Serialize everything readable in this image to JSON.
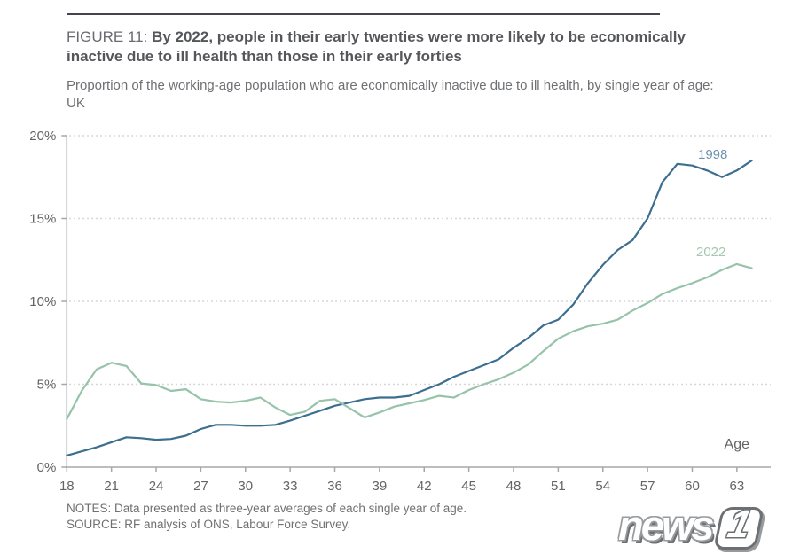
{
  "header": {
    "figure_label": "FIGURE 11:",
    "title": "By 2022, people in their early twenties were more likely to be economically inactive due to ill health than those in their early forties",
    "subtitle": "Proportion of the working-age population who are economically inactive due to ill health, by single year of age: UK"
  },
  "chart_data": {
    "type": "line",
    "title": "By 2022, people in their early twenties were more likely to be economically inactive due to ill health than those in their early forties",
    "subtitle": "Proportion of the working-age population who are economically inactive due to ill health, by single year of age: UK",
    "xlabel": "Age",
    "ylabel": "",
    "ylim": [
      0,
      20
    ],
    "grid": "horizontal-dotted",
    "legend": "inline-labels-near-line-ends",
    "x": [
      18,
      19,
      20,
      21,
      22,
      23,
      24,
      25,
      26,
      27,
      28,
      29,
      30,
      31,
      32,
      33,
      34,
      35,
      36,
      37,
      38,
      39,
      40,
      41,
      42,
      43,
      44,
      45,
      46,
      47,
      48,
      49,
      50,
      51,
      52,
      53,
      54,
      55,
      56,
      57,
      58,
      59,
      60,
      61,
      62,
      63,
      64
    ],
    "x_ticks": [
      18,
      21,
      24,
      27,
      30,
      33,
      36,
      39,
      42,
      45,
      48,
      51,
      54,
      57,
      60,
      63
    ],
    "x_tick_labels": [
      "18",
      "21",
      "24",
      "27",
      "30",
      "33",
      "36",
      "39",
      "42",
      "45",
      "48",
      "51",
      "54",
      "57",
      "60",
      "63"
    ],
    "y_ticks": [
      0,
      5,
      10,
      15,
      20
    ],
    "y_tick_labels": [
      "0%",
      "5%",
      "10%",
      "15%",
      "20%"
    ],
    "series": [
      {
        "name": "1998",
        "color": "#3c6e8f",
        "label_color": "#6e93ac",
        "values": [
          0.7,
          0.95,
          1.2,
          1.5,
          1.8,
          1.75,
          1.65,
          1.7,
          1.9,
          2.3,
          2.55,
          2.55,
          2.5,
          2.5,
          2.55,
          2.8,
          3.1,
          3.4,
          3.7,
          3.9,
          4.1,
          4.2,
          4.2,
          4.3,
          4.65,
          5.0,
          5.45,
          5.8,
          6.15,
          6.5,
          7.2,
          7.8,
          8.55,
          8.9,
          9.8,
          11.1,
          12.2,
          13.1,
          13.7,
          15.0,
          17.2,
          18.3,
          18.2,
          17.9,
          17.5,
          17.9,
          18.5
        ]
      },
      {
        "name": "2022",
        "color": "#96c3a9",
        "label_color": "#a3c8b1",
        "values": [
          2.9,
          4.6,
          5.9,
          6.3,
          6.1,
          5.05,
          4.95,
          4.6,
          4.7,
          4.1,
          3.95,
          3.9,
          4.0,
          4.2,
          3.6,
          3.15,
          3.35,
          4.0,
          4.1,
          3.55,
          3.0,
          3.3,
          3.65,
          3.85,
          4.05,
          4.3,
          4.2,
          4.65,
          5.0,
          5.3,
          5.7,
          6.2,
          7.0,
          7.75,
          8.2,
          8.5,
          8.65,
          8.9,
          9.45,
          9.9,
          10.45,
          10.8,
          11.1,
          11.45,
          11.9,
          12.25,
          12.0
        ]
      }
    ],
    "grid_color": "#c9cacb",
    "axis_color": "#a6a7a9",
    "tick_color": "#636466"
  },
  "footer": {
    "notes": "NOTES: Data presented as three-year averages of each single year of age.",
    "source": "SOURCE: RF analysis of ONS, Labour Force Survey."
  },
  "watermark": {
    "news": "news",
    "one": "1"
  },
  "colors": {
    "accent_blue": "#3c6e8f",
    "accent_green": "#96c3a9",
    "title_text": "#55565a",
    "body_text": "#6f7073",
    "rule": "#43464a"
  }
}
